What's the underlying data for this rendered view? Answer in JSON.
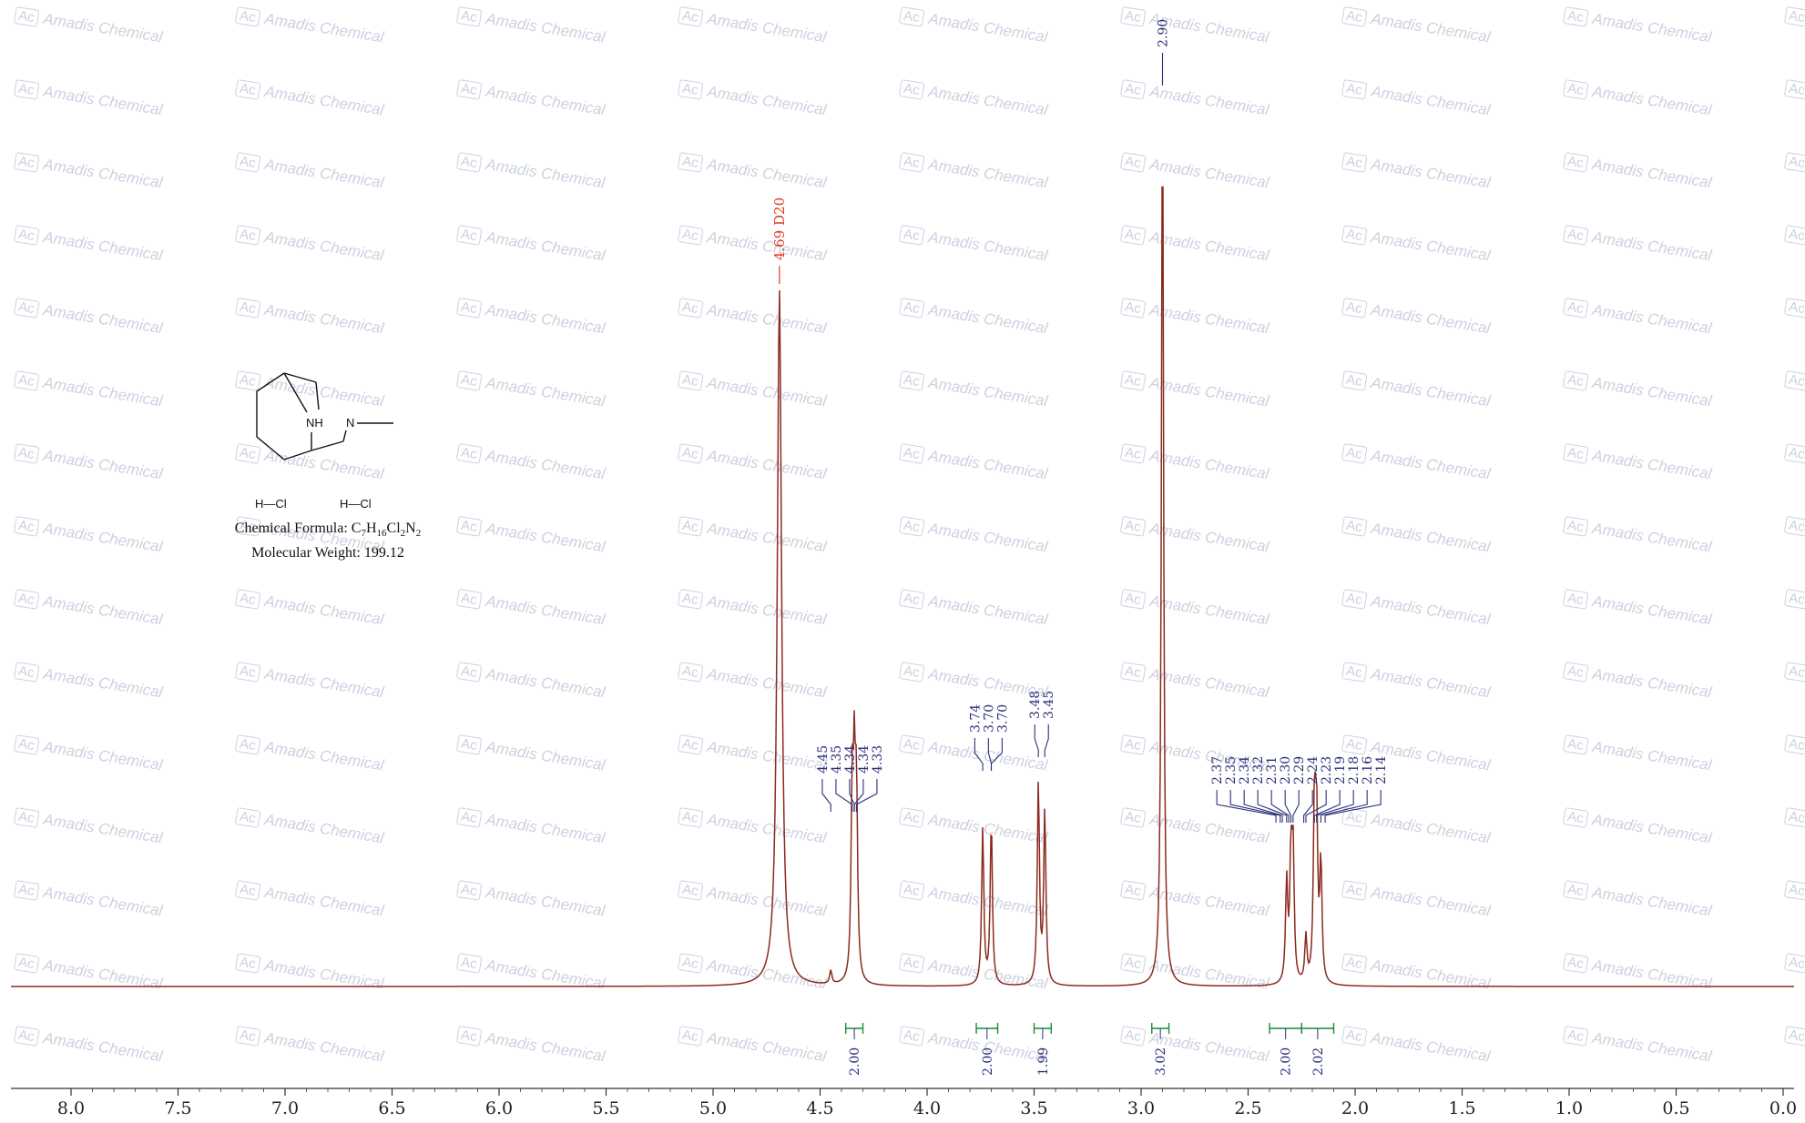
{
  "chart_data": {
    "type": "line",
    "title": "",
    "xlabel": "",
    "ylabel": "",
    "xlim": [
      8.0,
      0.0
    ],
    "x_ticks": [
      "8.0",
      "7.5",
      "7.0",
      "6.5",
      "6.0",
      "5.5",
      "5.0",
      "4.5",
      "4.0",
      "3.5",
      "3.0",
      "2.5",
      "2.0",
      "1.5",
      "1.0",
      "0.5",
      "0.0"
    ],
    "line_color": "#8b2a1e",
    "peak_label_color": "#2b2f7a",
    "solvent_label_color": "#e03a1e",
    "integral_color": "#1a8a3a",
    "solvent_peak": {
      "label": "4.69 D20",
      "shift": 4.69,
      "height": 0.76
    },
    "peaks": [
      {
        "shift": 4.45,
        "height": 0.015
      },
      {
        "shift": 4.35,
        "height": 0.19
      },
      {
        "shift": 4.34,
        "height": 0.2
      },
      {
        "shift": 4.33,
        "height": 0.19
      },
      {
        "shift": 3.74,
        "height": 0.17
      },
      {
        "shift": 3.7,
        "height": 0.18
      },
      {
        "shift": 3.48,
        "height": 0.22
      },
      {
        "shift": 3.45,
        "height": 0.19
      },
      {
        "shift": 2.9,
        "height": 0.98
      },
      {
        "shift": 2.32,
        "height": 0.11
      },
      {
        "shift": 2.3,
        "height": 0.13
      },
      {
        "shift": 2.29,
        "height": 0.14
      },
      {
        "shift": 2.23,
        "height": 0.05
      },
      {
        "shift": 2.19,
        "height": 0.19
      },
      {
        "shift": 2.18,
        "height": 0.17
      },
      {
        "shift": 2.16,
        "height": 0.13
      }
    ],
    "peak_label_groups": [
      {
        "labels": [
          "4.45",
          "4.35",
          "4.34",
          "4.34",
          "4.33"
        ],
        "shifts": [
          4.45,
          4.35,
          4.34,
          4.34,
          4.33
        ]
      },
      {
        "labels": [
          "3.74",
          "3.70",
          "3.70"
        ],
        "shifts": [
          3.74,
          3.7,
          3.7
        ]
      },
      {
        "labels": [
          "3.48",
          "3.45"
        ],
        "shifts": [
          3.48,
          3.45
        ]
      },
      {
        "labels": [
          "2.90"
        ],
        "shifts": [
          2.9
        ]
      },
      {
        "labels": [
          "2.37",
          "2.35",
          "2.34",
          "2.32",
          "2.31",
          "2.30",
          "2.29",
          "2.24",
          "2.23",
          "2.19",
          "2.18",
          "2.16",
          "2.14"
        ],
        "shifts": [
          2.37,
          2.35,
          2.34,
          2.32,
          2.31,
          2.3,
          2.29,
          2.24,
          2.23,
          2.19,
          2.18,
          2.16,
          2.14
        ]
      }
    ],
    "integrals": [
      {
        "value": "2.00",
        "from": 4.38,
        "to": 4.3
      },
      {
        "value": "2.00",
        "from": 3.77,
        "to": 3.67
      },
      {
        "value": "1.99",
        "from": 3.5,
        "to": 3.42
      },
      {
        "value": "3.02",
        "from": 2.95,
        "to": 2.87
      },
      {
        "value": "2.00",
        "from": 2.4,
        "to": 2.25
      },
      {
        "value": "2.02",
        "from": 2.25,
        "to": 2.1
      }
    ]
  },
  "compound": {
    "hcl_1": "H—Cl",
    "hcl_2": "H—Cl",
    "atom_nh": "NH",
    "atom_n": "N",
    "formula_prefix": "Chemical Formula: ",
    "formula_parts": [
      {
        "t": "C",
        "sub": false
      },
      {
        "t": "7",
        "sub": true
      },
      {
        "t": "H",
        "sub": false
      },
      {
        "t": "16",
        "sub": true
      },
      {
        "t": "Cl",
        "sub": false
      },
      {
        "t": "2",
        "sub": true
      },
      {
        "t": "N",
        "sub": false
      },
      {
        "t": "2",
        "sub": true
      }
    ],
    "mw_text": "Molecular Weight: 199.12"
  },
  "watermark": {
    "text": "Amadis Chemical",
    "logo": "Ac"
  }
}
